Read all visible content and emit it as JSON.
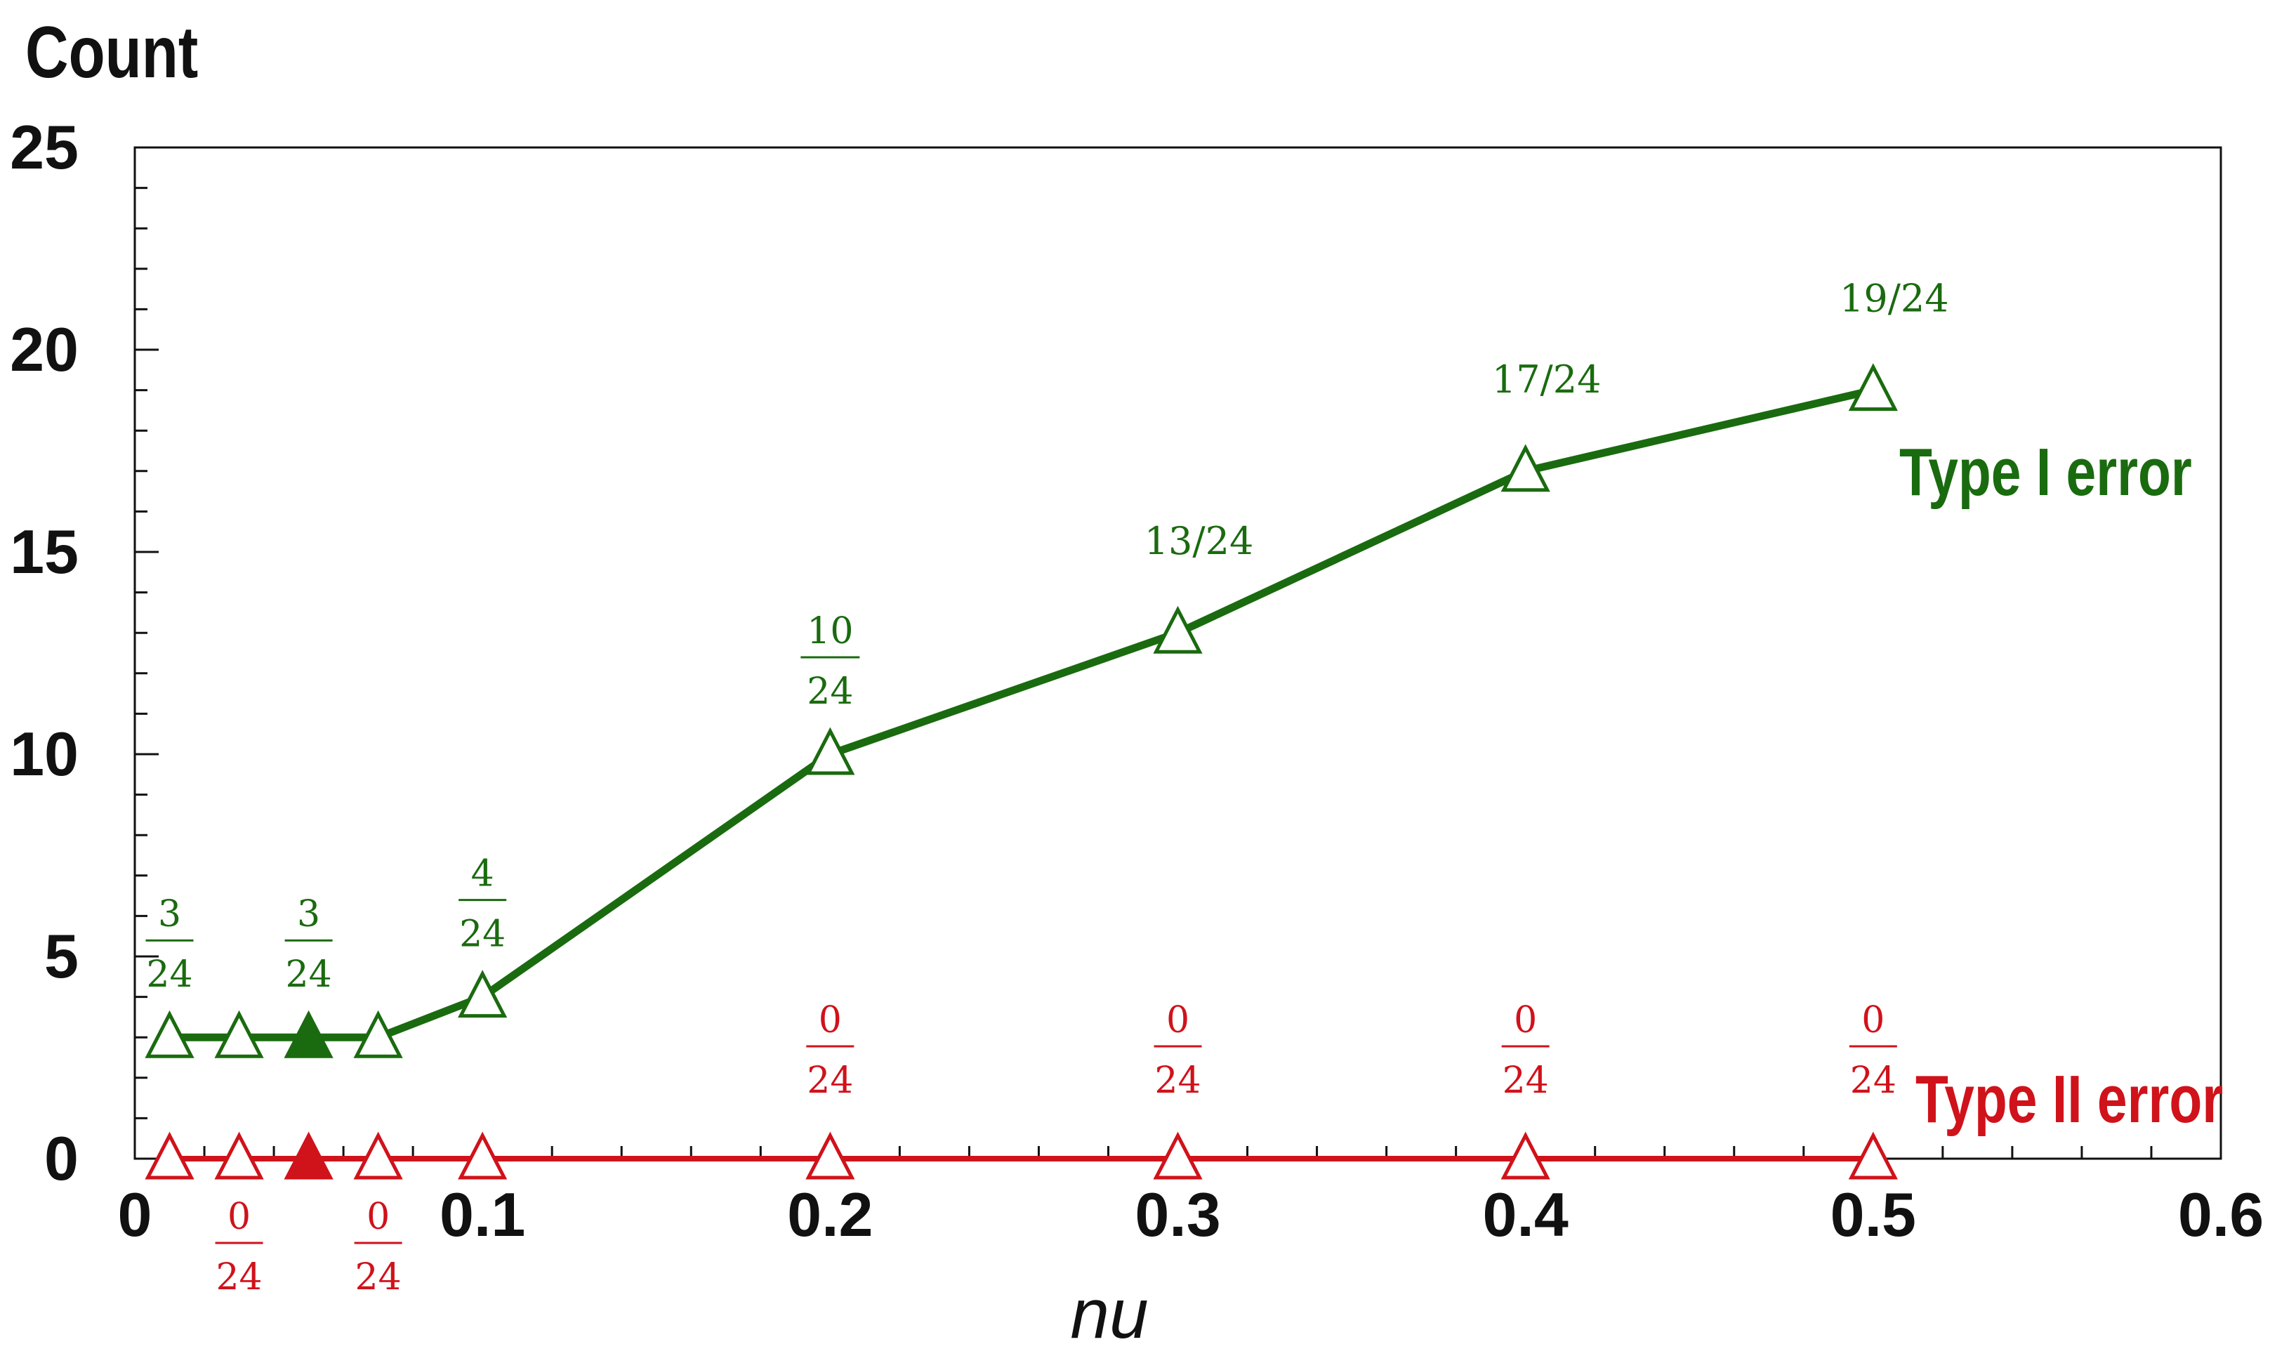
{
  "chart_data": {
    "type": "line",
    "ylabel": "Count",
    "xlabel": "nu",
    "xlim": [
      0,
      0.6
    ],
    "ylim": [
      0,
      25
    ],
    "x_major_ticks": [
      "0",
      "0.1",
      "0.2",
      "0.3",
      "0.4",
      "0.5",
      "0.6"
    ],
    "y_major_ticks": [
      "0",
      "5",
      "10",
      "15",
      "20",
      "25"
    ],
    "grid": false,
    "series": [
      {
        "name": "Type I error",
        "color": "#1a6b0f",
        "x": [
          0.01,
          0.03,
          0.05,
          0.07,
          0.1,
          0.2,
          0.3,
          0.4,
          0.5
        ],
        "y": [
          3,
          3,
          3,
          3,
          4,
          10,
          13,
          17,
          19
        ],
        "marker": "triangle-open",
        "highlight_filled_index": 2
      },
      {
        "name": "Type II error",
        "color": "#d0121b",
        "x": [
          0.01,
          0.03,
          0.05,
          0.07,
          0.1,
          0.2,
          0.3,
          0.4,
          0.5
        ],
        "y": [
          0,
          0,
          0,
          0,
          0,
          0,
          0,
          0,
          0
        ],
        "marker": "triangle-open",
        "highlight_filled_index": 2
      }
    ],
    "annotations": [
      {
        "series": 0,
        "x": 0.01,
        "y": 3,
        "style": "fraction",
        "num": "3",
        "den": "24"
      },
      {
        "series": 0,
        "x": 0.05,
        "y": 3,
        "style": "fraction",
        "num": "3",
        "den": "24"
      },
      {
        "series": 0,
        "x": 0.1,
        "y": 4,
        "style": "fraction",
        "num": "4",
        "den": "24"
      },
      {
        "series": 0,
        "x": 0.2,
        "y": 10,
        "style": "fraction",
        "num": "10",
        "den": "24"
      },
      {
        "series": 0,
        "x": 0.3,
        "y": 13,
        "style": "inline",
        "text": "13/24"
      },
      {
        "series": 0,
        "x": 0.4,
        "y": 17,
        "style": "inline",
        "text": "17/24"
      },
      {
        "series": 0,
        "x": 0.5,
        "y": 19,
        "style": "inline",
        "text": "19/24"
      },
      {
        "series": 1,
        "x": 0.03,
        "y": 0,
        "style": "fraction",
        "num": "0",
        "den": "24",
        "position": "below"
      },
      {
        "series": 1,
        "x": 0.07,
        "y": 0,
        "style": "fraction",
        "num": "0",
        "den": "24",
        "position": "below"
      },
      {
        "series": 1,
        "x": 0.2,
        "y": 0,
        "style": "fraction",
        "num": "0",
        "den": "24",
        "position": "above"
      },
      {
        "series": 1,
        "x": 0.3,
        "y": 0,
        "style": "fraction",
        "num": "0",
        "den": "24",
        "position": "above"
      },
      {
        "series": 1,
        "x": 0.4,
        "y": 0,
        "style": "fraction",
        "num": "0",
        "den": "24",
        "position": "above"
      },
      {
        "series": 1,
        "x": 0.5,
        "y": 0,
        "style": "fraction",
        "num": "0",
        "den": "24",
        "position": "above"
      }
    ]
  }
}
